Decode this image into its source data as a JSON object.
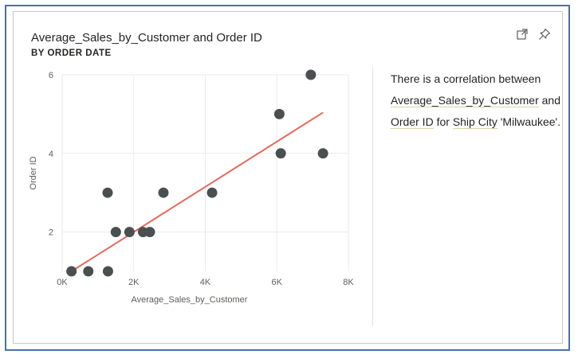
{
  "visual": {
    "title": "Average_Sales_by_Customer and Order ID",
    "subtitle": "BY ORDER DATE",
    "focus_mode_icon": "expand-icon",
    "pin_icon": "pin-icon"
  },
  "insight": {
    "part1": "There is a correlation between ",
    "field1": "Average_Sales_by_Customer",
    "part2": " and ",
    "field2": "Order ID",
    "part3": " for ",
    "field3": "Ship City",
    "part4": " 'Milwaukee'."
  },
  "chart_data": {
    "type": "scatter",
    "xlabel": "Average_Sales_by_Customer",
    "ylabel": "Order ID",
    "xlim": [
      0,
      8000
    ],
    "ylim": [
      1,
      6
    ],
    "x_ticks": [
      0,
      2000,
      4000,
      6000,
      8000
    ],
    "x_tick_labels": [
      "0K",
      "2K",
      "4K",
      "6K",
      "8K"
    ],
    "y_ticks": [
      2,
      4,
      6
    ],
    "y_tick_labels": [
      "2",
      "4",
      "6"
    ],
    "grid": true,
    "point_color": "#4a5050",
    "trend_color": "#e06b5e",
    "points": [
      {
        "x": 260,
        "y": 1
      },
      {
        "x": 730,
        "y": 1
      },
      {
        "x": 1280,
        "y": 1
      },
      {
        "x": 1270,
        "y": 3
      },
      {
        "x": 1500,
        "y": 2
      },
      {
        "x": 1880,
        "y": 2
      },
      {
        "x": 2260,
        "y": 2
      },
      {
        "x": 2450,
        "y": 2
      },
      {
        "x": 2830,
        "y": 3
      },
      {
        "x": 4190,
        "y": 3
      },
      {
        "x": 6070,
        "y": 5
      },
      {
        "x": 6110,
        "y": 4
      },
      {
        "x": 6950,
        "y": 6
      },
      {
        "x": 7290,
        "y": 4
      }
    ],
    "trend_line": {
      "x1": 260,
      "y1": 1.0,
      "x2": 7290,
      "y2": 5.04
    }
  }
}
